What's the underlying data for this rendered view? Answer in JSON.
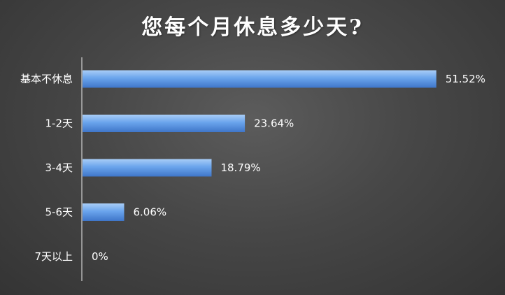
{
  "chart_data": {
    "type": "bar",
    "orientation": "horizontal",
    "title": "您每个月休息多少天?",
    "categories": [
      "基本不休息",
      "1-2天",
      "3-4天",
      "5-6天",
      "7天以上"
    ],
    "values": [
      51.52,
      23.64,
      18.79,
      6.06,
      0
    ],
    "value_labels": [
      "51.52%",
      "23.64%",
      "18.79%",
      "6.06%",
      "0%"
    ],
    "xlim": [
      0,
      55
    ],
    "grid": false,
    "legend": "none",
    "colors": {
      "bar_top": "#a9cdf7",
      "bar_mid": "#6aa4ec",
      "bar_bottom": "#3f76c9",
      "axis": "#cfcfcf",
      "text": "#ffffff"
    }
  }
}
